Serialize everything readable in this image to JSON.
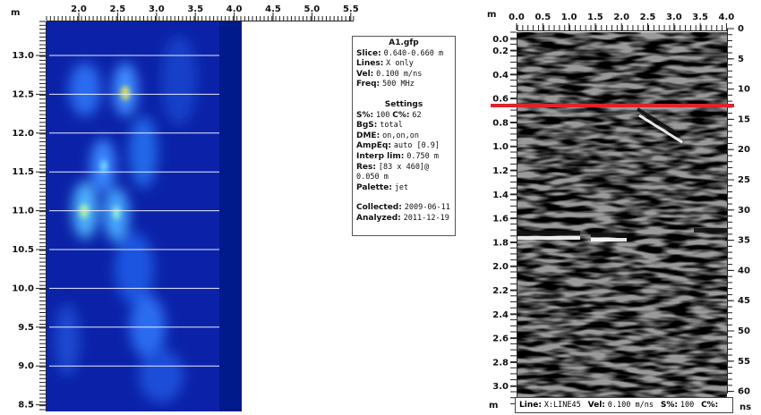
{
  "left_panel": {
    "unit": "m",
    "x_ticks": [
      "2.0",
      "2.5",
      "3.0",
      "3.5",
      "4.0",
      "4.5",
      "5.0",
      "5.5"
    ],
    "y_ticks": [
      "13.0",
      "12.5",
      "12.0",
      "11.5",
      "11.0",
      "10.5",
      "10.0",
      "9.5",
      "9.0",
      "8.5"
    ]
  },
  "info": {
    "title": "A1.gfp",
    "lines": [
      [
        {
          "label": "Slice:",
          "value": "0.640-0.660 m"
        }
      ],
      [
        {
          "label": "Lines:",
          "value": "X only"
        }
      ],
      [
        {
          "label": "Vel:",
          "value": "0.100 m/ns"
        }
      ],
      [
        {
          "label": "Freq:",
          "value": "500 MHz"
        }
      ]
    ],
    "settings_title": "Settings",
    "settings": [
      [
        {
          "label": "S%:",
          "value": "100"
        },
        {
          "label": "C%:",
          "value": "62"
        }
      ],
      [
        {
          "label": "BgS:",
          "value": "total"
        }
      ],
      [
        {
          "label": "DME:",
          "value": "on,on,on"
        }
      ],
      [
        {
          "label": "AmpEq:",
          "value": "auto [0.9]"
        }
      ],
      [
        {
          "label": "Interp lim:",
          "value": "0.750 m"
        }
      ],
      [
        {
          "label": "Res:",
          "value": "[83 x 460]@ 0.050 m"
        }
      ],
      [
        {
          "label": "Palette:",
          "value": "jet"
        }
      ]
    ],
    "dates": [
      [
        {
          "label": "Collected:",
          "value": "2009-06-11"
        }
      ],
      [
        {
          "label": "Analyzed:",
          "value": "2011-12-19"
        }
      ]
    ]
  },
  "right_panel": {
    "top_unit": "m",
    "bottom_unit": "m",
    "time_unit": "ns",
    "x_ticks": [
      "0.0",
      "0.5",
      "1.0",
      "1.5",
      "2.0",
      "2.5",
      "3.0",
      "3.5",
      "4.0"
    ],
    "y_ticks": [
      "0.0",
      "0.2",
      "0.4",
      "0.6",
      "0.8",
      "1.0",
      "1.2",
      "1.4",
      "1.6",
      "1.8",
      "2.0",
      "2.2",
      "2.4",
      "2.6",
      "2.8",
      "3.0"
    ],
    "time_ticks": [
      "0",
      "5",
      "10",
      "15",
      "20",
      "25",
      "30",
      "35",
      "40",
      "45",
      "50",
      "55",
      "60"
    ],
    "status": [
      {
        "label": "Line:",
        "value": "X:LINE45"
      },
      {
        "label": "Vel:",
        "value": "0.100 m/ns"
      },
      {
        "label": "S%:",
        "value": "100"
      },
      {
        "label": "C%:",
        "value": ""
      }
    ]
  }
}
